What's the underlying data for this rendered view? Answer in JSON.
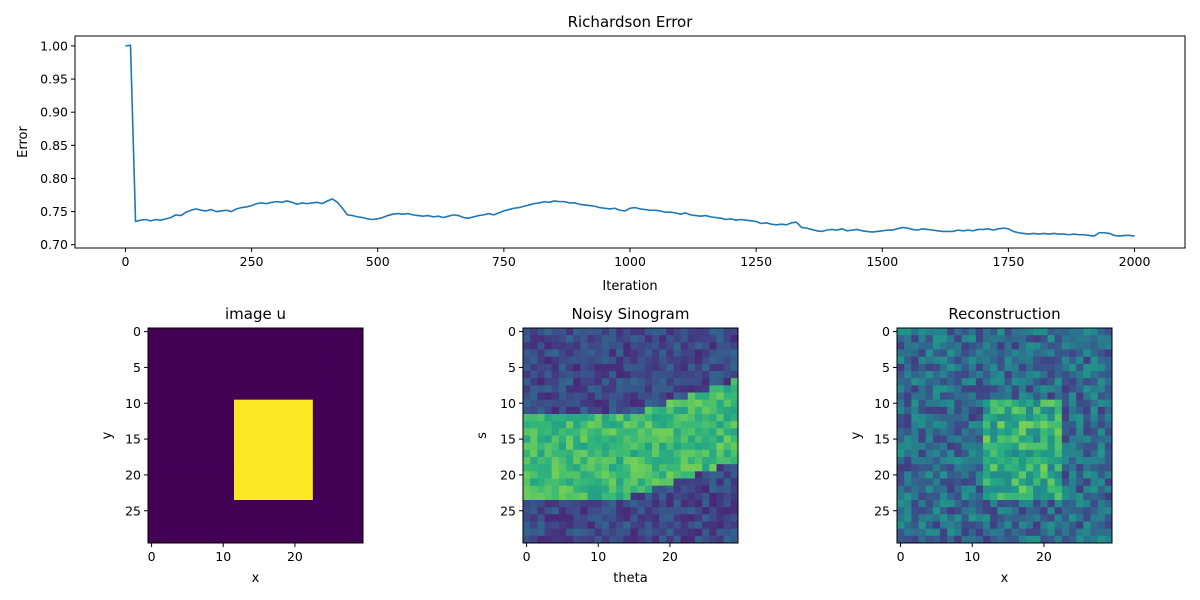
{
  "chart_data": [
    {
      "type": "line",
      "title": "Richardson Error",
      "xlabel": "Iteration",
      "ylabel": "Error",
      "xlim": [
        -100,
        2100
      ],
      "ylim": [
        0.695,
        1.015
      ],
      "xticks": [
        0,
        250,
        500,
        750,
        1000,
        1250,
        1500,
        1750,
        2000
      ],
      "xtick_labels": [
        "0",
        "250",
        "500",
        "750",
        "1000",
        "1250",
        "1500",
        "1750",
        "2000"
      ],
      "yticks": [
        0.7,
        0.75,
        0.8,
        0.85,
        0.9,
        0.95,
        1.0
      ],
      "ytick_labels": [
        "0.70",
        "0.75",
        "0.80",
        "0.85",
        "0.90",
        "0.95",
        "1.00"
      ],
      "grid": false,
      "color": "#1f77b4",
      "x": [
        0,
        10,
        20,
        30,
        40,
        50,
        60,
        70,
        80,
        90,
        100,
        110,
        120,
        130,
        140,
        150,
        160,
        170,
        180,
        190,
        200,
        210,
        220,
        230,
        240,
        250,
        260,
        270,
        280,
        290,
        300,
        310,
        320,
        330,
        340,
        350,
        360,
        370,
        380,
        390,
        400,
        410,
        420,
        430,
        440,
        450,
        460,
        470,
        480,
        490,
        500,
        510,
        520,
        530,
        540,
        550,
        560,
        570,
        580,
        590,
        600,
        610,
        620,
        630,
        640,
        650,
        660,
        670,
        680,
        690,
        700,
        710,
        720,
        730,
        740,
        750,
        760,
        770,
        780,
        790,
        800,
        810,
        820,
        830,
        840,
        850,
        860,
        870,
        880,
        890,
        900,
        910,
        920,
        930,
        940,
        950,
        960,
        970,
        980,
        990,
        1000,
        1010,
        1020,
        1030,
        1040,
        1050,
        1060,
        1070,
        1080,
        1090,
        1100,
        1110,
        1120,
        1130,
        1140,
        1150,
        1160,
        1170,
        1180,
        1190,
        1200,
        1210,
        1220,
        1230,
        1240,
        1250,
        1260,
        1270,
        1280,
        1290,
        1300,
        1310,
        1320,
        1330,
        1340,
        1350,
        1360,
        1370,
        1380,
        1390,
        1400,
        1410,
        1420,
        1430,
        1440,
        1450,
        1460,
        1470,
        1480,
        1490,
        1500,
        1510,
        1520,
        1530,
        1540,
        1550,
        1560,
        1570,
        1580,
        1590,
        1600,
        1610,
        1620,
        1630,
        1640,
        1650,
        1660,
        1670,
        1680,
        1690,
        1700,
        1710,
        1720,
        1730,
        1740,
        1750,
        1760,
        1770,
        1780,
        1790,
        1800,
        1810,
        1820,
        1830,
        1840,
        1850,
        1860,
        1870,
        1880,
        1890,
        1900,
        1910,
        1920,
        1930,
        1940,
        1950,
        1960,
        1970,
        1980,
        1990,
        2000
      ],
      "y": [
        1.0,
        1.001,
        0.735,
        0.737,
        0.738,
        0.736,
        0.738,
        0.737,
        0.739,
        0.741,
        0.745,
        0.744,
        0.749,
        0.752,
        0.754,
        0.752,
        0.751,
        0.753,
        0.75,
        0.751,
        0.752,
        0.75,
        0.754,
        0.756,
        0.757,
        0.759,
        0.762,
        0.763,
        0.762,
        0.764,
        0.765,
        0.764,
        0.766,
        0.764,
        0.761,
        0.763,
        0.762,
        0.763,
        0.764,
        0.762,
        0.766,
        0.769,
        0.764,
        0.755,
        0.745,
        0.744,
        0.742,
        0.741,
        0.739,
        0.738,
        0.739,
        0.741,
        0.744,
        0.746,
        0.747,
        0.746,
        0.747,
        0.745,
        0.744,
        0.743,
        0.744,
        0.742,
        0.743,
        0.741,
        0.743,
        0.745,
        0.744,
        0.741,
        0.74,
        0.742,
        0.744,
        0.745,
        0.747,
        0.745,
        0.748,
        0.751,
        0.753,
        0.755,
        0.756,
        0.758,
        0.76,
        0.762,
        0.763,
        0.765,
        0.764,
        0.766,
        0.765,
        0.765,
        0.763,
        0.763,
        0.761,
        0.76,
        0.759,
        0.758,
        0.756,
        0.755,
        0.754,
        0.755,
        0.752,
        0.751,
        0.755,
        0.756,
        0.754,
        0.753,
        0.752,
        0.752,
        0.751,
        0.749,
        0.749,
        0.748,
        0.746,
        0.748,
        0.745,
        0.744,
        0.743,
        0.744,
        0.742,
        0.741,
        0.74,
        0.738,
        0.739,
        0.737,
        0.738,
        0.737,
        0.736,
        0.735,
        0.732,
        0.733,
        0.731,
        0.73,
        0.731,
        0.73,
        0.733,
        0.734,
        0.726,
        0.725,
        0.723,
        0.721,
        0.72,
        0.722,
        0.723,
        0.722,
        0.724,
        0.721,
        0.722,
        0.723,
        0.721,
        0.72,
        0.719,
        0.72,
        0.721,
        0.722,
        0.722,
        0.724,
        0.726,
        0.725,
        0.723,
        0.722,
        0.724,
        0.723,
        0.722,
        0.721,
        0.72,
        0.72,
        0.72,
        0.722,
        0.721,
        0.722,
        0.721,
        0.723,
        0.723,
        0.724,
        0.722,
        0.724,
        0.725,
        0.724,
        0.72,
        0.718,
        0.717,
        0.716,
        0.717,
        0.716,
        0.717,
        0.716,
        0.717,
        0.716,
        0.716,
        0.715,
        0.716,
        0.715,
        0.715,
        0.714,
        0.713,
        0.718,
        0.718,
        0.717,
        0.714,
        0.713,
        0.714,
        0.714,
        0.713
      ]
    },
    {
      "type": "heatmap",
      "title": "image u",
      "xlabel": "x",
      "ylabel": "y",
      "colormap": "viridis",
      "shape": [
        30,
        30
      ],
      "rectangle": {
        "rows": [
          10,
          23
        ],
        "cols": [
          12,
          22
        ],
        "value": 1
      },
      "background_value": 0,
      "xticks": [
        0,
        10,
        20
      ],
      "xtick_labels": [
        "0",
        "10",
        "20"
      ],
      "yticks": [
        0,
        5,
        10,
        15,
        20,
        25
      ],
      "ytick_labels": [
        "0",
        "5",
        "10",
        "15",
        "20",
        "25"
      ]
    },
    {
      "type": "heatmap",
      "title": "Noisy Sinogram",
      "xlabel": "theta",
      "ylabel": "s",
      "colormap": "viridis",
      "shape": [
        30,
        30
      ],
      "xticks": [
        0,
        10,
        20
      ],
      "xtick_labels": [
        "0",
        "10",
        "20"
      ],
      "yticks": [
        0,
        5,
        10,
        15,
        20,
        25
      ],
      "ytick_labels": [
        "0",
        "5",
        "10",
        "15",
        "20",
        "25"
      ]
    },
    {
      "type": "heatmap",
      "title": "Reconstruction",
      "xlabel": "x",
      "ylabel": "y",
      "colormap": "viridis",
      "shape": [
        30,
        30
      ],
      "xticks": [
        0,
        10,
        20
      ],
      "xtick_labels": [
        "0",
        "10",
        "20"
      ],
      "yticks": [
        0,
        5,
        10,
        15,
        20,
        25
      ],
      "ytick_labels": [
        "0",
        "5",
        "10",
        "15",
        "20",
        "25"
      ]
    }
  ]
}
